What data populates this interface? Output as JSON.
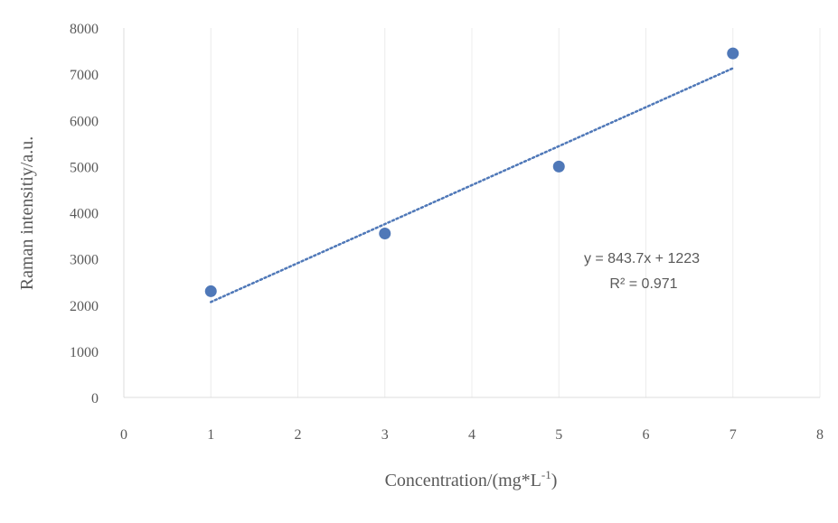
{
  "chart_data": {
    "type": "scatter",
    "xlabel": "Concentration/(mg*L",
    "xlabel_sup": "-1",
    "xlabel_close": ")",
    "ylabel": "Raman intensitiy/a.u.",
    "xlim": [
      0,
      8
    ],
    "ylim": [
      0,
      8000
    ],
    "x_ticks": [
      0,
      1,
      2,
      3,
      4,
      5,
      6,
      7,
      8
    ],
    "y_ticks": [
      0,
      1000,
      2000,
      3000,
      4000,
      5000,
      6000,
      7000,
      8000
    ],
    "points": [
      {
        "x": 1,
        "y": 2300
      },
      {
        "x": 3,
        "y": 3550
      },
      {
        "x": 5,
        "y": 5000
      },
      {
        "x": 7,
        "y": 7450
      }
    ],
    "trendline": {
      "type": "linear",
      "slope": 843.7,
      "intercept": 1223,
      "x_range": [
        1,
        7
      ],
      "equation": "y = 843.7x + 1223",
      "r_squared": "R² = 0.971"
    },
    "grid": "vertical",
    "colors": {
      "marker": "#4f78b8",
      "trendline": "#4f78b8",
      "grid": "#ececec",
      "text": "#595959"
    }
  }
}
